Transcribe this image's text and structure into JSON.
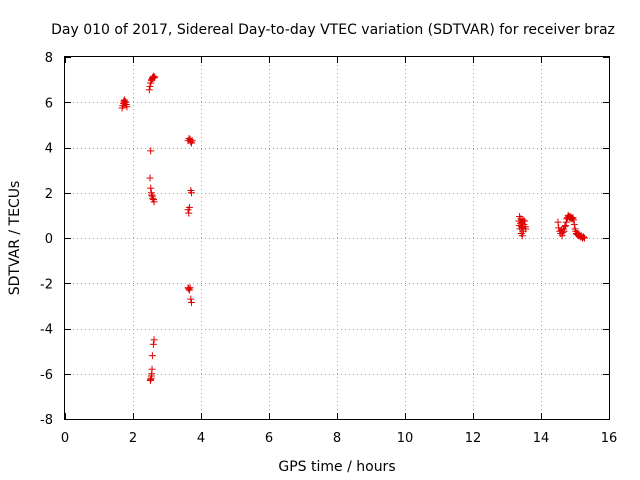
{
  "chart_data": {
    "type": "scatter",
    "title": "Day 010 of 2017, Sidereal Day-to-day VTEC variation (SDTVAR) for receiver braz",
    "xlabel": "GPS time / hours",
    "ylabel": "SDTVAR / TECUs",
    "xlim": [
      0,
      16
    ],
    "ylim": [
      -8,
      8
    ],
    "xticks": [
      0,
      2,
      4,
      6,
      8,
      10,
      12,
      14,
      16
    ],
    "yticks": [
      -8,
      -6,
      -4,
      -2,
      0,
      2,
      4,
      6,
      8
    ],
    "grid": true,
    "marker": "+",
    "marker_color": "#e00000",
    "series": [
      {
        "name": "braz",
        "points": [
          [
            1.68,
            5.75
          ],
          [
            1.7,
            5.85
          ],
          [
            1.72,
            5.95
          ],
          [
            1.73,
            6.05
          ],
          [
            1.75,
            6.1
          ],
          [
            1.76,
            5.98
          ],
          [
            1.78,
            6.02
          ],
          [
            1.8,
            5.9
          ],
          [
            1.82,
            5.8
          ],
          [
            2.48,
            6.55
          ],
          [
            2.5,
            6.7
          ],
          [
            2.52,
            6.85
          ],
          [
            2.54,
            6.95
          ],
          [
            2.55,
            7.0
          ],
          [
            2.57,
            7.05
          ],
          [
            2.58,
            7.1
          ],
          [
            2.6,
            7.15
          ],
          [
            2.62,
            7.08
          ],
          [
            2.64,
            7.12
          ],
          [
            2.52,
            3.85
          ],
          [
            2.5,
            2.65
          ],
          [
            2.52,
            2.2
          ],
          [
            2.54,
            2.0
          ],
          [
            2.55,
            1.9
          ],
          [
            2.57,
            1.85
          ],
          [
            2.58,
            1.75
          ],
          [
            2.6,
            1.7
          ],
          [
            2.62,
            1.6
          ],
          [
            2.62,
            -4.5
          ],
          [
            2.6,
            -4.7
          ],
          [
            2.57,
            -5.2
          ],
          [
            2.56,
            -5.8
          ],
          [
            2.55,
            -6.0
          ],
          [
            2.54,
            -6.1
          ],
          [
            2.53,
            -6.2
          ],
          [
            2.52,
            -6.25
          ],
          [
            2.51,
            -6.3
          ],
          [
            3.62,
            4.3
          ],
          [
            3.65,
            4.4
          ],
          [
            3.68,
            4.35
          ],
          [
            3.7,
            4.25
          ],
          [
            3.72,
            4.2
          ],
          [
            3.74,
            4.3
          ],
          [
            3.7,
            2.1
          ],
          [
            3.72,
            2.0
          ],
          [
            3.62,
            1.25
          ],
          [
            3.64,
            1.1
          ],
          [
            3.66,
            1.35
          ],
          [
            3.62,
            -2.2
          ],
          [
            3.64,
            -2.25
          ],
          [
            3.66,
            -2.3
          ],
          [
            3.68,
            -2.2
          ],
          [
            3.7,
            -2.7
          ],
          [
            3.72,
            -2.85
          ],
          [
            13.35,
            0.75
          ],
          [
            13.36,
            0.55
          ],
          [
            13.37,
            0.95
          ],
          [
            13.38,
            0.4
          ],
          [
            13.4,
            0.65
          ],
          [
            13.41,
            0.85
          ],
          [
            13.42,
            0.2
          ],
          [
            13.43,
            0.5
          ],
          [
            13.44,
            0.7
          ],
          [
            13.45,
            0.1
          ],
          [
            13.46,
            0.45
          ],
          [
            13.47,
            0.8
          ],
          [
            13.48,
            0.3
          ],
          [
            13.5,
            0.6
          ],
          [
            13.52,
            0.75
          ],
          [
            13.54,
            0.5
          ],
          [
            13.55,
            0.4
          ],
          [
            14.5,
            0.7
          ],
          [
            14.52,
            0.45
          ],
          [
            14.55,
            0.3
          ],
          [
            14.58,
            0.2
          ],
          [
            14.6,
            0.35
          ],
          [
            14.62,
            0.1
          ],
          [
            14.64,
            0.25
          ],
          [
            14.66,
            0.4
          ],
          [
            14.68,
            0.3
          ],
          [
            14.7,
            0.5
          ],
          [
            14.72,
            0.55
          ],
          [
            14.74,
            0.7
          ],
          [
            14.76,
            0.85
          ],
          [
            14.78,
            0.9
          ],
          [
            14.8,
            1.0
          ],
          [
            14.82,
            0.95
          ],
          [
            14.84,
            0.9
          ],
          [
            14.86,
            0.95
          ],
          [
            14.88,
            0.85
          ],
          [
            14.9,
            0.9
          ],
          [
            14.92,
            0.85
          ],
          [
            14.94,
            0.9
          ],
          [
            14.96,
            0.8
          ],
          [
            14.98,
            0.6
          ],
          [
            15.0,
            0.4
          ],
          [
            15.02,
            0.3
          ],
          [
            15.04,
            0.2
          ],
          [
            15.06,
            0.15
          ],
          [
            15.08,
            0.2
          ],
          [
            15.1,
            0.1
          ],
          [
            15.12,
            0.15
          ],
          [
            15.14,
            0.1
          ],
          [
            15.16,
            0.05
          ],
          [
            15.18,
            0.1
          ],
          [
            15.2,
            0.05
          ],
          [
            15.22,
            0.0
          ],
          [
            15.25,
            0.05
          ],
          [
            15.28,
            0.0
          ]
        ]
      }
    ]
  }
}
